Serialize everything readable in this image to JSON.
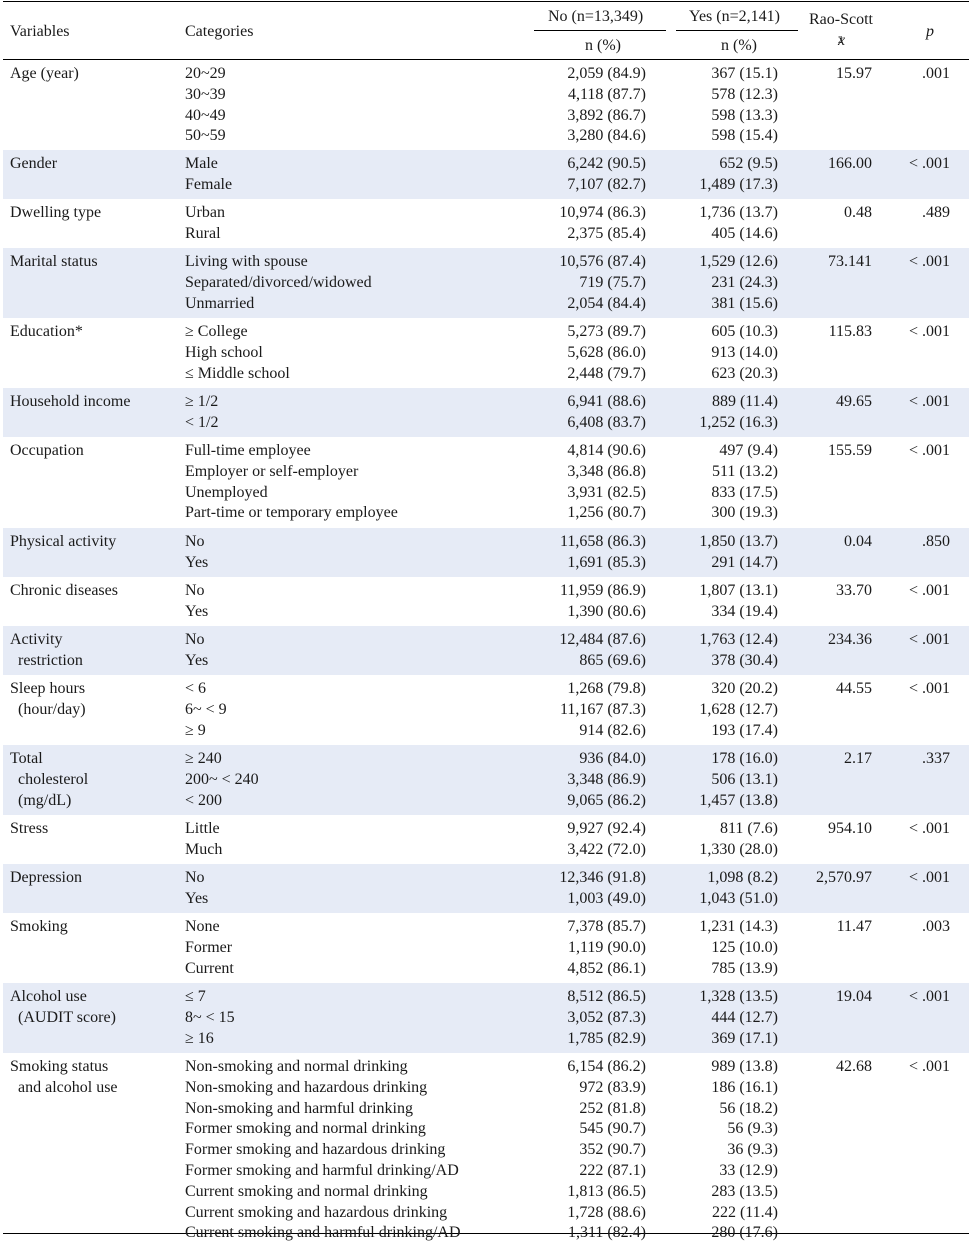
{
  "header": {
    "variables": "Variables",
    "categories": "Categories",
    "no_group": "No (n=13,349)",
    "yes_group": "Yes (n=2,141)",
    "n_pct": "n (%)",
    "rao_scott": "Rao-Scott",
    "chi_symbol": "x",
    "chi_sup": "2",
    "p": "p"
  },
  "rows": [
    {
      "variable": "Age (year)",
      "categories": [
        "20~29",
        "30~39",
        "40~49",
        "50~59"
      ],
      "no": [
        "2,059 (84.9)",
        "4,118 (87.7)",
        "3,892 (86.7)",
        "3,280 (84.6)"
      ],
      "yes": [
        "367 (15.1)",
        "578 (12.3)",
        "598 (13.3)",
        "598 (15.4)"
      ],
      "chi": "15.97",
      "p": ".001"
    },
    {
      "variable": "Gender",
      "categories": [
        "Male",
        "Female"
      ],
      "no": [
        "6,242 (90.5)",
        "7,107 (82.7)"
      ],
      "yes": [
        "652 (9.5)",
        "1,489 (17.3)"
      ],
      "chi": "166.00",
      "p": "< .001"
    },
    {
      "variable": "Dwelling type",
      "categories": [
        "Urban",
        "Rural"
      ],
      "no": [
        "10,974 (86.3)",
        "2,375 (85.4)"
      ],
      "yes": [
        "1,736 (13.7)",
        "405 (14.6)"
      ],
      "chi": "0.48",
      "p": ".489"
    },
    {
      "variable": "Marital status",
      "categories": [
        "Living with spouse",
        "Separated/divorced/widowed",
        "Unmarried"
      ],
      "no": [
        "10,576 (87.4)",
        "719 (75.7)",
        "2,054 (84.4)"
      ],
      "yes": [
        "1,529 (12.6)",
        "231 (24.3)",
        "381 (15.6)"
      ],
      "chi": "73.141",
      "p": "< .001"
    },
    {
      "variable": "Education*",
      "categories": [
        "≥ College",
        "High school",
        "≤ Middle school"
      ],
      "no": [
        "5,273 (89.7)",
        "5,628 (86.0)",
        "2,448 (79.7)"
      ],
      "yes": [
        "605 (10.3)",
        "913 (14.0)",
        "623 (20.3)"
      ],
      "chi": "115.83",
      "p": "< .001"
    },
    {
      "variable": "Household income",
      "categories": [
        "≥ 1/2",
        "< 1/2"
      ],
      "no": [
        "6,941 (88.6)",
        "6,408 (83.7)"
      ],
      "yes": [
        "889 (11.4)",
        "1,252 (16.3)"
      ],
      "chi": "49.65",
      "p": "< .001"
    },
    {
      "variable": "Occupation",
      "categories": [
        "Full-time employee",
        "Employer or self-employer",
        "Unemployed",
        "Part-time or temporary employee"
      ],
      "no": [
        "4,814 (90.6)",
        "3,348 (86.8)",
        "3,931 (82.5)",
        "1,256 (80.7)"
      ],
      "yes": [
        "497 (9.4)",
        "511 (13.2)",
        "833 (17.5)",
        "300 (19.3)"
      ],
      "chi": "155.59",
      "p": "< .001"
    },
    {
      "variable": "Physical activity",
      "categories": [
        "No",
        "Yes"
      ],
      "no": [
        "11,658 (86.3)",
        "1,691 (85.3)"
      ],
      "yes": [
        "1,850 (13.7)",
        "291 (14.7)"
      ],
      "chi": "0.04",
      "p": ".850"
    },
    {
      "variable": "Chronic diseases",
      "categories": [
        "No",
        "Yes"
      ],
      "no": [
        "11,959 (86.9)",
        "1,390 (80.6)"
      ],
      "yes": [
        "1,807 (13.1)",
        "334 (19.4)"
      ],
      "chi": "33.70",
      "p": "< .001"
    },
    {
      "variable": "Activity\n  restriction",
      "categories": [
        "No",
        "Yes"
      ],
      "no": [
        "12,484 (87.6)",
        "865 (69.6)"
      ],
      "yes": [
        "1,763 (12.4)",
        "378 (30.4)"
      ],
      "chi": "234.36",
      "p": "< .001"
    },
    {
      "variable": "Sleep hours\n  (hour/day)",
      "categories": [
        "< 6",
        "6~ < 9",
        "≥ 9"
      ],
      "no": [
        "1,268 (79.8)",
        "11,167 (87.3)",
        "914 (82.6)"
      ],
      "yes": [
        "320 (20.2)",
        "1,628 (12.7)",
        "193 (17.4)"
      ],
      "chi": "44.55",
      "p": "< .001"
    },
    {
      "variable": "Total\n  cholesterol\n  (mg/dL)",
      "categories": [
        "≥ 240",
        "200~ < 240",
        "< 200"
      ],
      "no": [
        "936 (84.0)",
        "3,348 (86.9)",
        "9,065 (86.2)"
      ],
      "yes": [
        "178 (16.0)",
        "506 (13.1)",
        "1,457 (13.8)"
      ],
      "chi": "2.17",
      "p": ".337"
    },
    {
      "variable": "Stress",
      "categories": [
        "Little",
        "Much"
      ],
      "no": [
        "9,927 (92.4)",
        "3,422 (72.0)"
      ],
      "yes": [
        "811 (7.6)",
        "1,330 (28.0)"
      ],
      "chi": "954.10",
      "p": "< .001"
    },
    {
      "variable": "Depression",
      "categories": [
        "No",
        "Yes"
      ],
      "no": [
        "12,346 (91.8)",
        "1,003 (49.0)"
      ],
      "yes": [
        "1,098 (8.2)",
        "1,043 (51.0)"
      ],
      "chi": "2,570.97",
      "p": "< .001"
    },
    {
      "variable": "Smoking",
      "categories": [
        "None",
        "Former",
        "Current"
      ],
      "no": [
        "7,378 (85.7)",
        "1,119 (90.0)",
        "4,852 (86.1)"
      ],
      "yes": [
        "1,231 (14.3)",
        "125 (10.0)",
        "785 (13.9)"
      ],
      "chi": "11.47",
      "p": ".003"
    },
    {
      "variable": "Alcohol use\n  (AUDIT score)",
      "categories": [
        "≤ 7",
        "8~ < 15",
        "≥ 16"
      ],
      "no": [
        "8,512 (86.5)",
        "3,052 (87.3)",
        "1,785 (82.9)"
      ],
      "yes": [
        "1,328 (13.5)",
        "444 (12.7)",
        "369 (17.1)"
      ],
      "chi": "19.04",
      "p": "< .001"
    },
    {
      "variable": "Smoking status\n  and alcohol use",
      "categories": [
        "Non-smoking and normal drinking",
        "Non-smoking and hazardous drinking",
        "Non-smoking and harmful drinking",
        "Former smoking and normal drinking",
        "Former smoking and hazardous drinking",
        "Former smoking and harmful drinking/AD",
        "Current smoking and normal drinking",
        "Current smoking and hazardous drinking",
        "Current smoking and harmful drinking/AD"
      ],
      "no": [
        "6,154 (86.2)",
        "972 (83.9)",
        "252 (81.8)",
        "545 (90.7)",
        "352 (90.7)",
        "222 (87.1)",
        "1,813 (86.5)",
        "1,728 (88.6)",
        "1,311 (82.4)"
      ],
      "yes": [
        "989 (13.8)",
        "186 (16.1)",
        "56 (18.2)",
        "56 (9.3)",
        "36 (9.3)",
        "33 (12.9)",
        "283 (13.5)",
        "222 (11.4)",
        "280 (17.6)"
      ],
      "chi": "42.68",
      "p": "< .001"
    }
  ],
  "shaded_rows": [
    1,
    3,
    5,
    7,
    9,
    11,
    13,
    15
  ]
}
